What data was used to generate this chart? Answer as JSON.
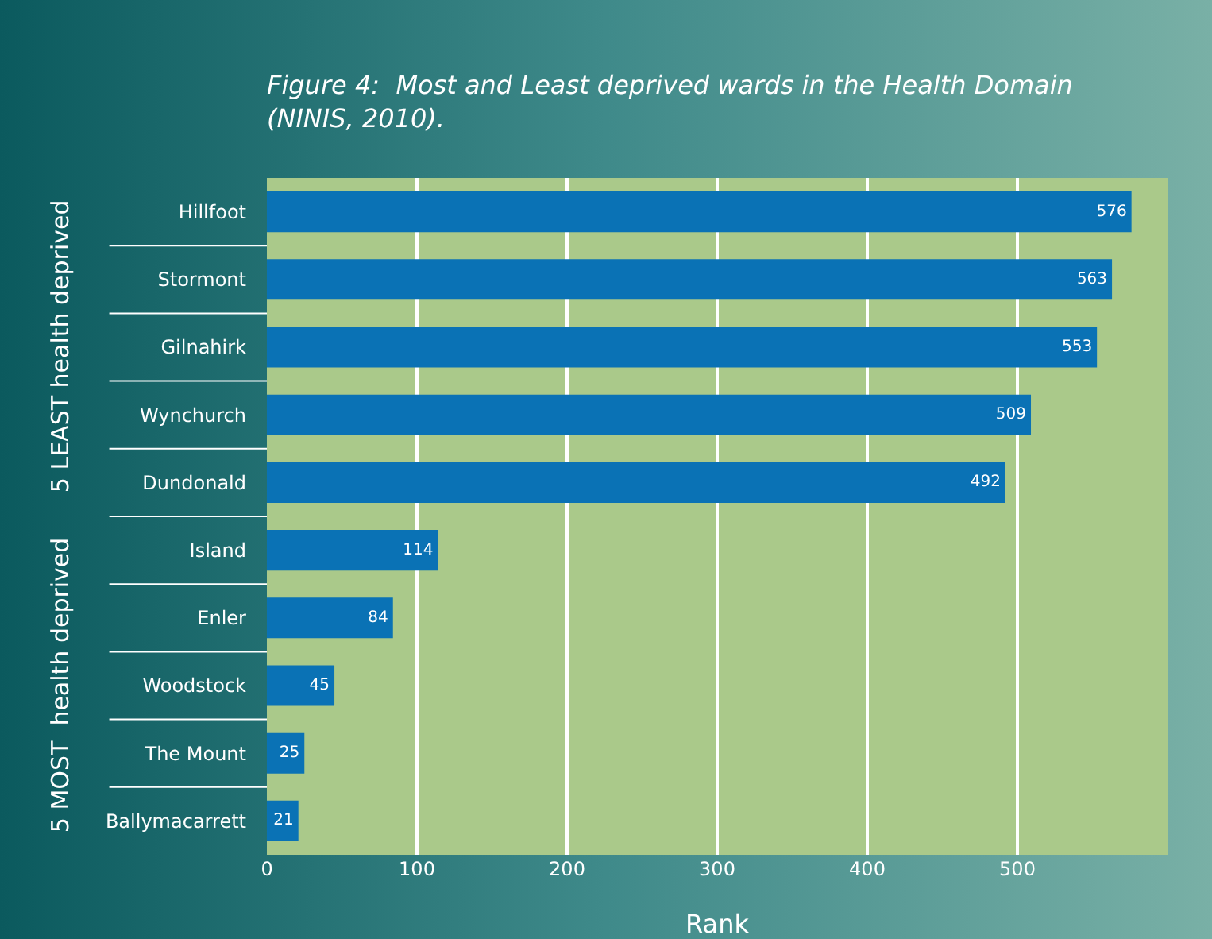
{
  "chart_data": {
    "type": "bar",
    "orientation": "horizontal",
    "title": "Figure 4:  Most and Least deprived wards in the Health Domain\n(NINIS, 2010).",
    "xlabel": "Rank",
    "categories": [
      "Hillfoot",
      "Stormont",
      "Gilnahirk",
      "Wynchurch",
      "Dundonald",
      "Island",
      "Enler",
      "Woodstock",
      "The Mount",
      "Ballymacarrett"
    ],
    "values": [
      576,
      563,
      553,
      509,
      492,
      114,
      84,
      45,
      25,
      21
    ],
    "color": "#0a72b5",
    "data_labels": true,
    "xlim": [
      0,
      600
    ],
    "xticks": [
      0,
      100,
      200,
      300,
      400,
      500
    ],
    "grid": "x",
    "annotations": [
      "5 LEAST health deprived",
      "5 MOST  health deprived"
    ]
  }
}
